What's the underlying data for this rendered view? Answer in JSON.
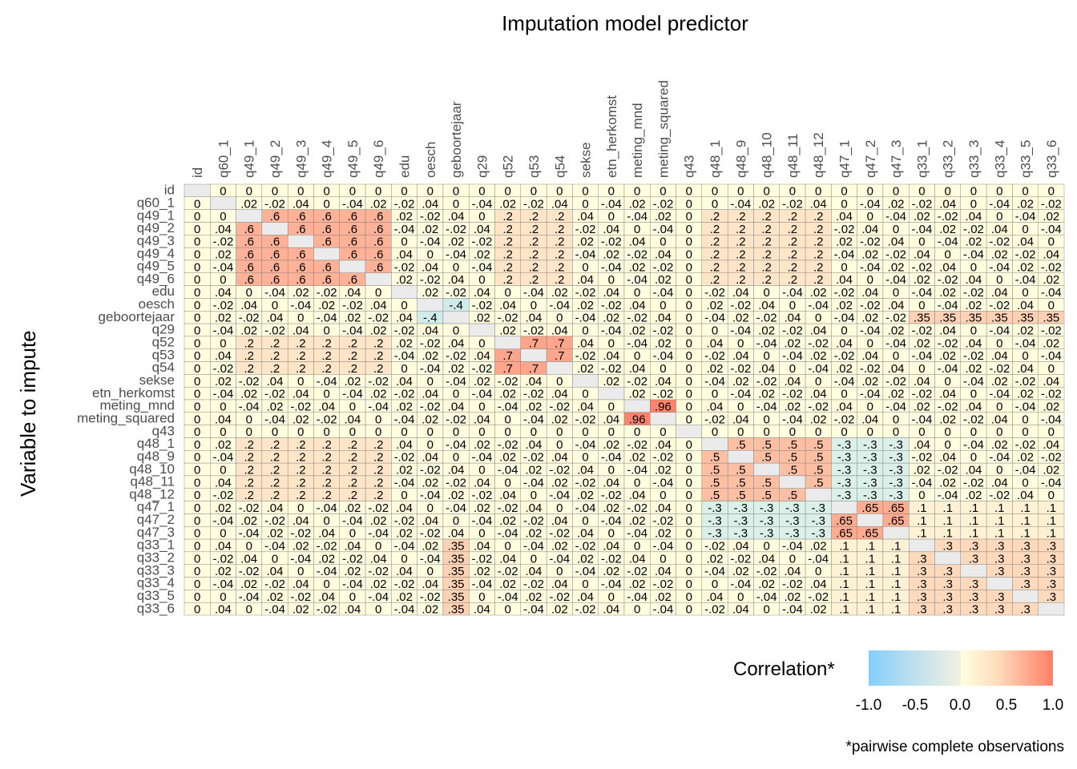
{
  "chart_data": {
    "type": "heatmap",
    "title": "Imputation model predictor",
    "xlabel": "Imputation model predictor",
    "ylabel": "Variable to impute",
    "x_categories": [
      "id",
      "q60_1",
      "q49_1",
      "q49_2",
      "q49_3",
      "q49_4",
      "q49_5",
      "q49_6",
      "edu",
      "oesch",
      "geboortejaar",
      "q29",
      "q52",
      "q53",
      "q54",
      "sekse",
      "etn_herkomst",
      "meting_mnd",
      "meting_squared",
      "q43",
      "q48_1",
      "q48_9",
      "q48_10",
      "q48_11",
      "q48_12",
      "q47_1",
      "q47_2",
      "q47_3",
      "q33_1",
      "q33_2",
      "q33_3",
      "q33_4",
      "q33_5",
      "q33_6"
    ],
    "y_categories": [
      "id",
      "q60_1",
      "q49_1",
      "q49_2",
      "q49_3",
      "q49_4",
      "q49_5",
      "q49_6",
      "edu",
      "oesch",
      "geboortejaar",
      "q29",
      "q52",
      "q53",
      "q54",
      "sekse",
      "etn_herkomst",
      "meting_mnd",
      "meting_squared",
      "q43",
      "q48_1",
      "q48_9",
      "q48_10",
      "q48_11",
      "q48_12",
      "q47_1",
      "q47_2",
      "q47_3",
      "q33_1",
      "q33_2",
      "q33_3",
      "q33_4",
      "q33_5",
      "q33_6"
    ],
    "value_range": [
      -1,
      1
    ],
    "legend": {
      "title": "Correlation*",
      "ticks": [
        "-1.0",
        "-0.5",
        "0.0",
        "0.5",
        "1.0"
      ],
      "colors": {
        "low": "#87cefa",
        "mid": "#ffffe0",
        "high": "#ff7f66"
      },
      "placement": "bottom-right"
    },
    "caption": "*pairwise complete observations",
    "grid": true,
    "note_values": "approximate correlations; strong positive block among q49_*, strong q52–q53–q54, meting_mnd–meting_squared 0.96, q48_* and q47_* blocks, q33_* block; oesch–geboortejaar ~ -0.4"
  }
}
